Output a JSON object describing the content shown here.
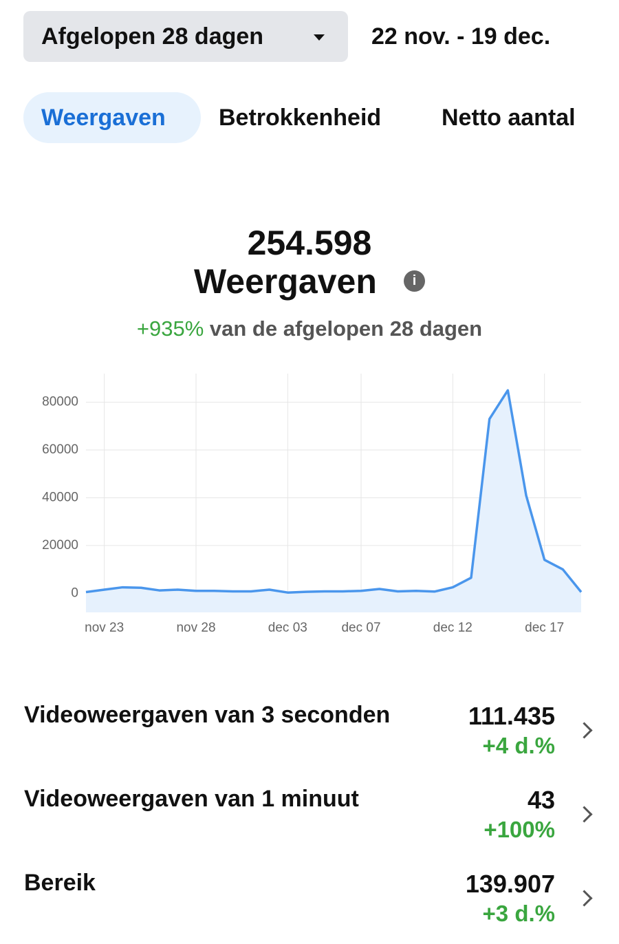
{
  "header": {
    "period": "Afgelopen 28 dagen",
    "range": "22 nov. - 19 dec."
  },
  "tabs": [
    "Weergaven",
    "Betrokkenheid",
    "Netto aantal"
  ],
  "summary": {
    "total": "254.598",
    "label": "Weergaven",
    "change": "+935%",
    "comparison": "van de afgelopen 28 dagen"
  },
  "chart": {
    "type": "line",
    "color": "#4a96ec",
    "categories": [
      null,
      "nov 23",
      null,
      null,
      null,
      null,
      "nov 28",
      null,
      null,
      null,
      null,
      "dec 03",
      null,
      null,
      null,
      "dec 07",
      null,
      null,
      null,
      null,
      "dec 12",
      null,
      null,
      null,
      null,
      "dec 17",
      null,
      null
    ],
    "values": [
      500,
      1500,
      2500,
      2300,
      1200,
      1500,
      1000,
      1000,
      800,
      800,
      1500,
      300,
      600,
      800,
      800,
      1000,
      1800,
      800,
      1000,
      700,
      2500,
      6500,
      73000,
      85000,
      41000,
      14000,
      10000,
      500
    ],
    "ylim": [
      -8000,
      92000
    ],
    "yticks": [
      0,
      20000,
      40000,
      60000,
      80000
    ],
    "grid": true
  },
  "metrics": [
    {
      "label": "Videoweergaven van 3 seconden",
      "value": "111.435",
      "change": "+4 d.%"
    },
    {
      "label": "Videoweergaven van 1 minuut",
      "value": "43",
      "change": "+100%"
    },
    {
      "label": "Bereik",
      "value": "139.907",
      "change": "+3 d.%"
    }
  ]
}
